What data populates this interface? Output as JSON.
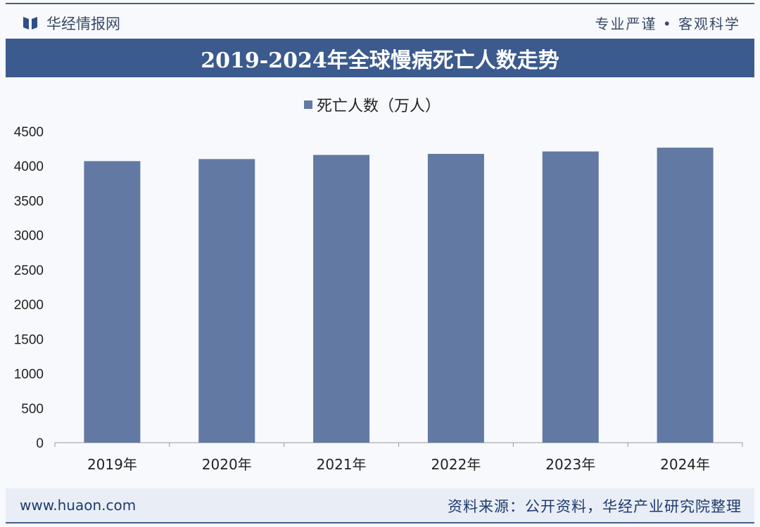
{
  "header": {
    "brand": "华经情报网",
    "slogan": "专业严谨 • 客观科学",
    "title": "2019-2024年全球慢病死亡人数走势"
  },
  "footer": {
    "url": "www.huaon.com",
    "source": "资料来源：公开资料，华经产业研究院整理"
  },
  "colors": {
    "bar": "#6279a3",
    "title_bg": "#3b5a8e"
  },
  "chart_data": {
    "type": "bar",
    "title": "2019-2024年全球慢病死亡人数走势",
    "categories": [
      "2019年",
      "2020年",
      "2021年",
      "2022年",
      "2023年",
      "2024年"
    ],
    "series": [
      {
        "name": "死亡人数（万人）",
        "values": [
          4070,
          4100,
          4160,
          4175,
          4210,
          4265
        ]
      }
    ],
    "ylim": [
      0,
      4500
    ],
    "yticks": [
      0,
      500,
      1000,
      1500,
      2000,
      2500,
      3000,
      3500,
      4000,
      4500
    ],
    "grid": false,
    "legend": "top-center"
  }
}
